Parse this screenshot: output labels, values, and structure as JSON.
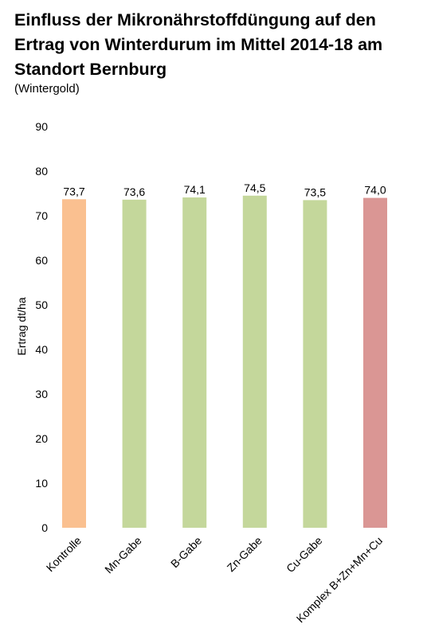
{
  "chart_data": {
    "type": "bar",
    "title": "Einfluss der Mikronährstoffdüngung auf den Ertrag von Winterdurum im Mittel 2014-18 am Standort Bernburg",
    "subtitle": "(Wintergold)",
    "xlabel": "",
    "ylabel": "Ertrag dt/ha",
    "ylim": [
      0,
      90
    ],
    "yticks": [
      0,
      10,
      20,
      30,
      40,
      50,
      60,
      70,
      80,
      90
    ],
    "grid": false,
    "categories": [
      "Kontrolle",
      "Mn-Gabe",
      "B-Gabe",
      "Zn-Gabe",
      "Cu-Gabe",
      "Komplex B+Zn+Mn+Cu"
    ],
    "values": [
      73.7,
      73.6,
      74.1,
      74.5,
      73.5,
      74.0
    ],
    "value_labels": [
      "73,7",
      "73,6",
      "74,1",
      "74,5",
      "73,5",
      "74,0"
    ],
    "colors": [
      "#FAC090",
      "#C4D79B",
      "#C4D79B",
      "#C4D79B",
      "#C4D79B",
      "#DA9694"
    ]
  }
}
